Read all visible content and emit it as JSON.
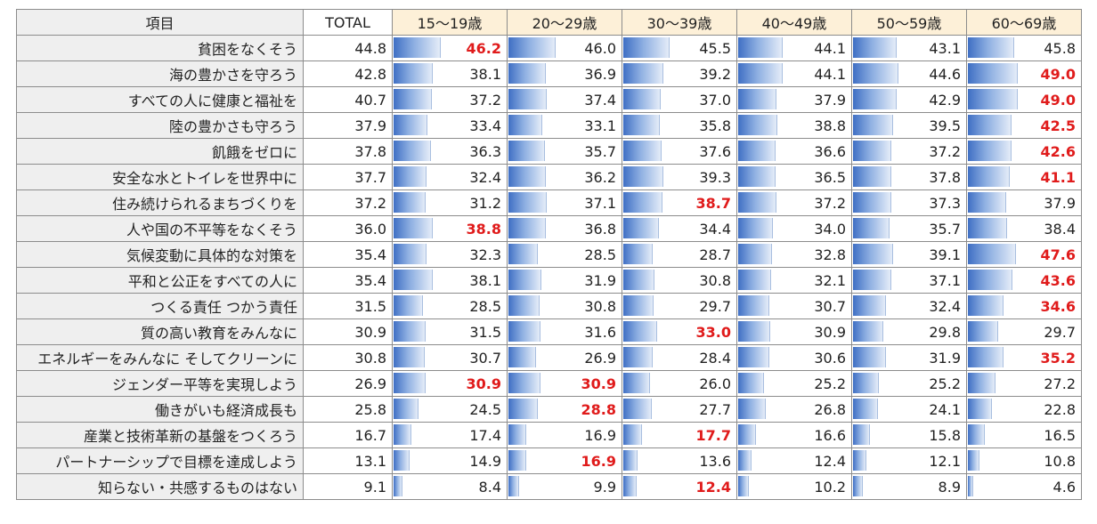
{
  "chart_data": {
    "type": "table",
    "header_label": "項目",
    "columns": [
      "TOTAL",
      "15～19歳",
      "20～29歳",
      "30～39歳",
      "40～49歳",
      "50～59歳",
      "60～69歳"
    ],
    "bar_max": 50,
    "highlight_color": "#e01b1b",
    "bar_color": "#3f6fc4",
    "rows": [
      {
        "label": "貧困をなくそう",
        "values": [
          "44.8",
          "46.2",
          "46.0",
          "45.5",
          "44.1",
          "43.1",
          "45.8"
        ],
        "highlight": [
          1
        ]
      },
      {
        "label": "海の豊かさを守ろう",
        "values": [
          "42.8",
          "38.1",
          "36.9",
          "39.2",
          "44.1",
          "44.6",
          "49.0"
        ],
        "highlight": [
          6
        ]
      },
      {
        "label": "すべての人に健康と福祉を",
        "values": [
          "40.7",
          "37.2",
          "37.4",
          "37.0",
          "37.9",
          "42.9",
          "49.0"
        ],
        "highlight": [
          6
        ]
      },
      {
        "label": "陸の豊かさも守ろう",
        "values": [
          "37.9",
          "33.4",
          "33.1",
          "35.8",
          "38.8",
          "39.5",
          "42.5"
        ],
        "highlight": [
          6
        ]
      },
      {
        "label": "飢餓をゼロに",
        "values": [
          "37.8",
          "36.3",
          "35.7",
          "37.6",
          "36.6",
          "37.2",
          "42.6"
        ],
        "highlight": [
          6
        ]
      },
      {
        "label": "安全な水とトイレを世界中に",
        "values": [
          "37.7",
          "32.4",
          "36.2",
          "39.3",
          "36.5",
          "37.8",
          "41.1"
        ],
        "highlight": [
          6
        ]
      },
      {
        "label": "住み続けられるまちづくりを",
        "values": [
          "37.2",
          "31.2",
          "37.1",
          "38.7",
          "37.2",
          "37.3",
          "37.9"
        ],
        "highlight": [
          3
        ]
      },
      {
        "label": "人や国の不平等をなくそう",
        "values": [
          "36.0",
          "38.8",
          "36.8",
          "34.4",
          "34.0",
          "35.7",
          "38.4"
        ],
        "highlight": [
          1
        ]
      },
      {
        "label": "気候変動に具体的な対策を",
        "values": [
          "35.4",
          "32.3",
          "28.5",
          "28.7",
          "32.8",
          "39.1",
          "47.6"
        ],
        "highlight": [
          6
        ]
      },
      {
        "label": "平和と公正をすべての人に",
        "values": [
          "35.4",
          "38.1",
          "31.9",
          "30.8",
          "32.1",
          "37.1",
          "43.6"
        ],
        "highlight": [
          6
        ]
      },
      {
        "label": "つくる責任 つかう責任",
        "values": [
          "31.5",
          "28.5",
          "30.8",
          "29.7",
          "30.7",
          "32.4",
          "34.6"
        ],
        "highlight": [
          6
        ]
      },
      {
        "label": "質の高い教育をみんなに",
        "values": [
          "30.9",
          "31.5",
          "31.6",
          "33.0",
          "30.9",
          "29.8",
          "29.7"
        ],
        "highlight": [
          3
        ]
      },
      {
        "label": "エネルギーをみんなに そしてクリーンに",
        "values": [
          "30.8",
          "30.7",
          "26.9",
          "28.4",
          "30.6",
          "31.9",
          "35.2"
        ],
        "highlight": [
          6
        ]
      },
      {
        "label": "ジェンダー平等を実現しよう",
        "values": [
          "26.9",
          "30.9",
          "30.9",
          "26.0",
          "25.2",
          "25.2",
          "27.2"
        ],
        "highlight": [
          1,
          2
        ]
      },
      {
        "label": "働きがいも経済成長も",
        "values": [
          "25.8",
          "24.5",
          "28.8",
          "27.7",
          "26.8",
          "24.1",
          "22.8"
        ],
        "highlight": [
          2
        ]
      },
      {
        "label": "産業と技術革新の基盤をつくろう",
        "values": [
          "16.7",
          "17.4",
          "16.9",
          "17.7",
          "16.6",
          "15.8",
          "16.5"
        ],
        "highlight": [
          3
        ]
      },
      {
        "label": "パートナーシップで目標を達成しよう",
        "values": [
          "13.1",
          "14.9",
          "16.9",
          "13.6",
          "12.4",
          "12.1",
          "10.8"
        ],
        "highlight": [
          2
        ]
      },
      {
        "label": "知らない・共感するものはない",
        "values": [
          "9.1",
          "8.4",
          "9.9",
          "12.4",
          "10.2",
          "8.9",
          "4.6"
        ],
        "highlight": [
          3
        ]
      }
    ]
  }
}
